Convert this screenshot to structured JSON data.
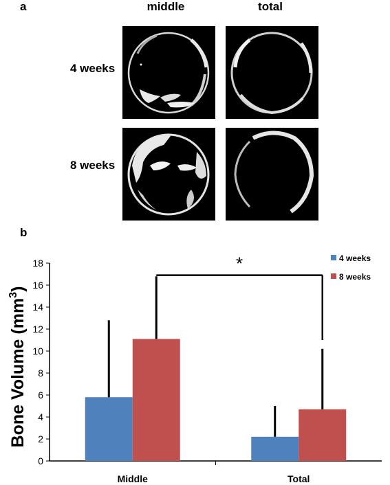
{
  "panel_a": {
    "label": "a",
    "columns": [
      "middle",
      "total"
    ],
    "rows": [
      "4 weeks",
      "8 weeks"
    ]
  },
  "panel_b": {
    "label": "b"
  },
  "chart_data": {
    "type": "bar",
    "categories": [
      "Middle",
      "Total"
    ],
    "series": [
      {
        "name": "4 weeks",
        "values": [
          5.8,
          2.2
        ],
        "error": [
          7.0,
          2.8
        ],
        "color": "#4f81bd"
      },
      {
        "name": "8 weeks",
        "values": [
          11.1,
          4.7
        ],
        "error": [
          5.7,
          5.5
        ],
        "color": "#c0504d"
      }
    ],
    "ylabel": "Bone Volume (mm",
    "ylabel_sup": "3",
    "ylabel_close": ")",
    "ylim": [
      0,
      18
    ],
    "yticks": [
      "0",
      "2",
      "4",
      "6",
      "8",
      "10",
      "12",
      "14",
      "16",
      "18"
    ],
    "significance": {
      "between": [
        "Middle 8 weeks",
        "Total 8 weeks"
      ],
      "label": "*"
    },
    "legend_position": "top-right",
    "grid": false
  }
}
